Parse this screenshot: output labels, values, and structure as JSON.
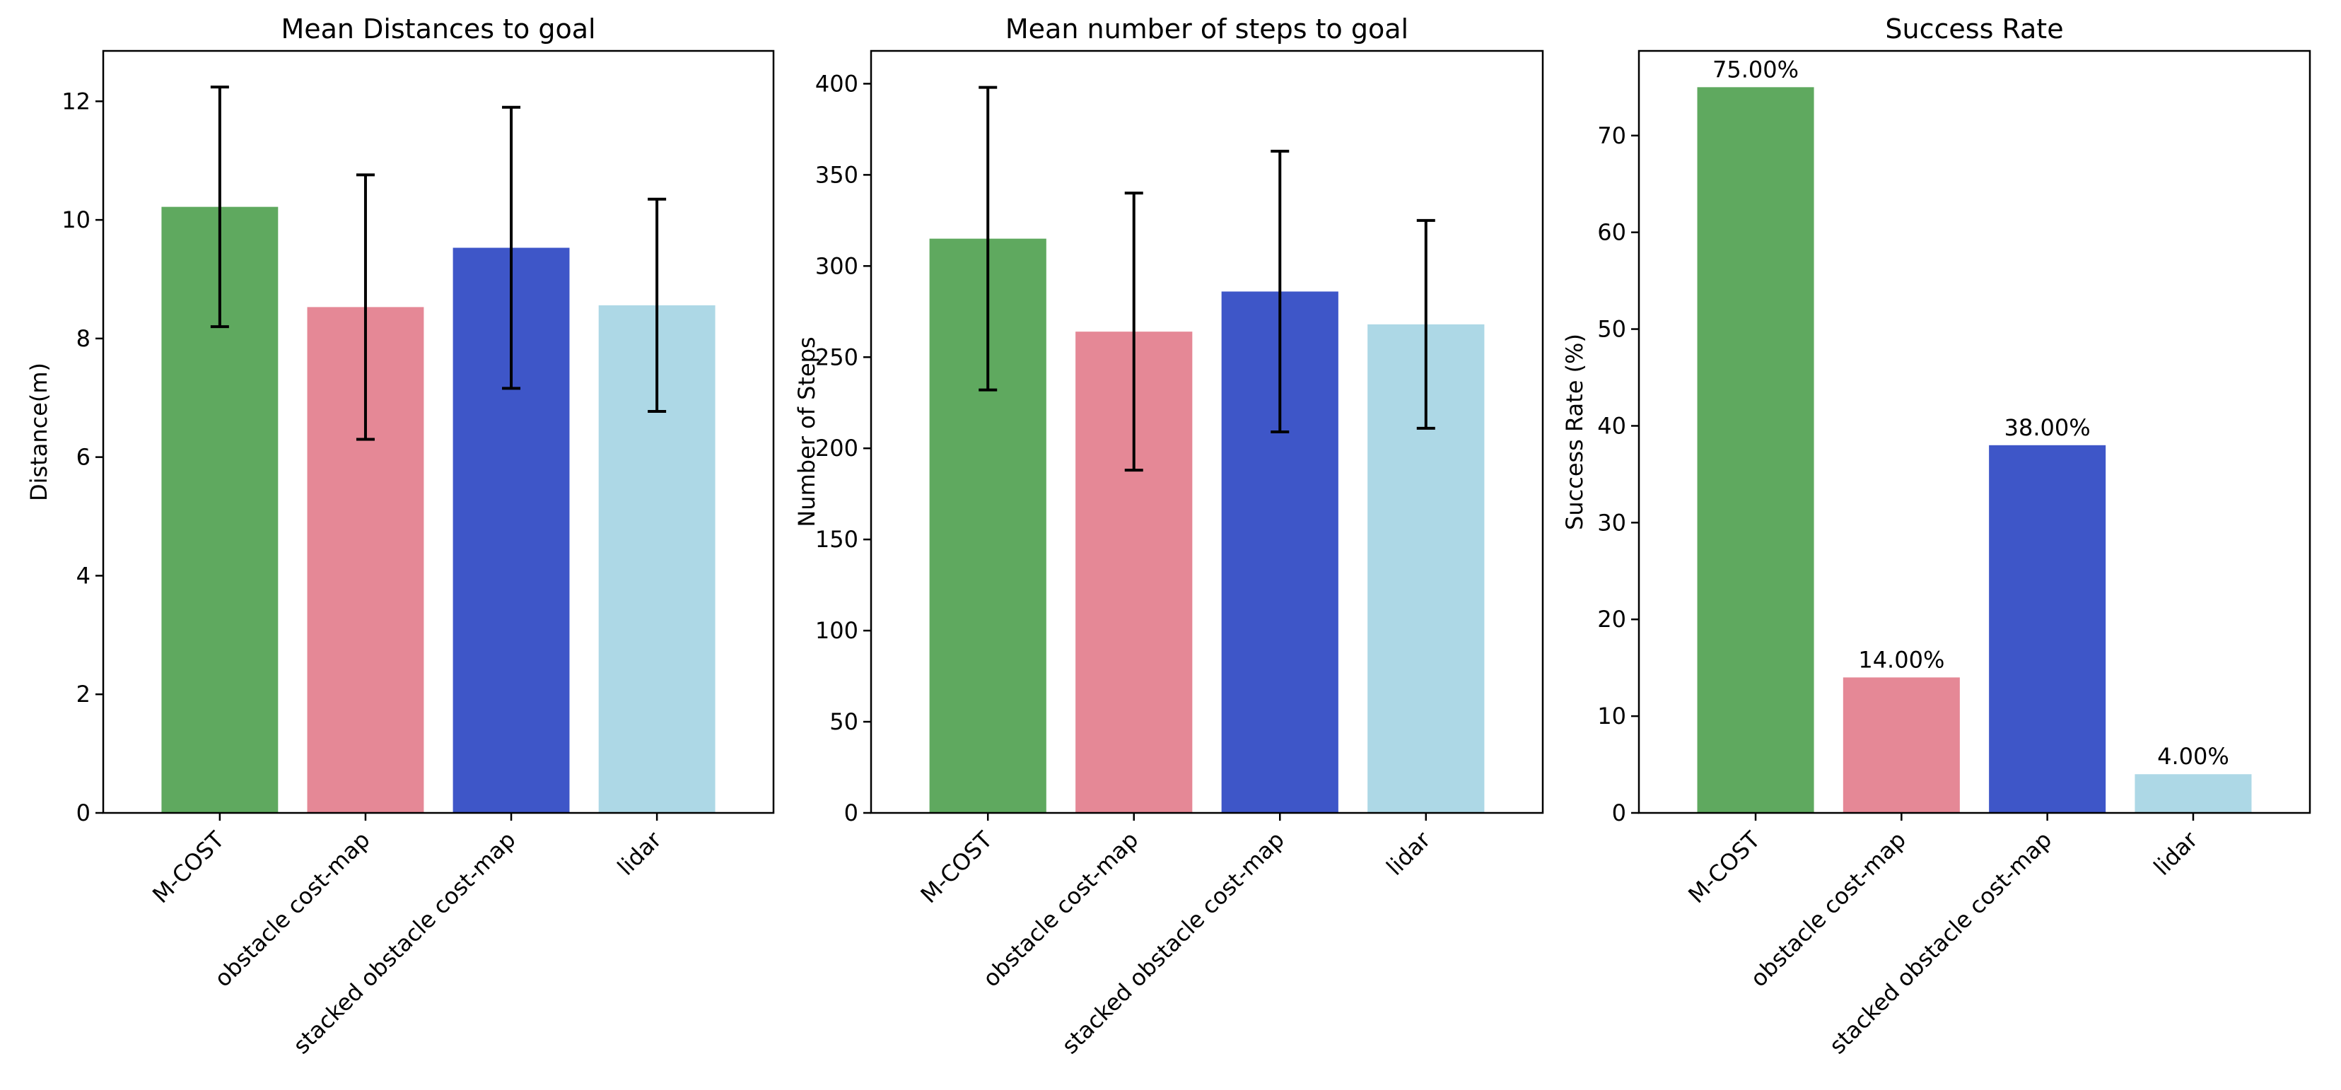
{
  "chart_data": [
    {
      "type": "bar",
      "title": "Mean Distances to goal",
      "xlabel": "",
      "ylabel": "Distance(m)",
      "ylim": [
        0,
        12.85
      ],
      "yticks": [
        0,
        2,
        4,
        6,
        8,
        10,
        12
      ],
      "categories": [
        "M-COST",
        "obstacle cost-map",
        "stacked obstacle cost-map",
        "lidar"
      ],
      "values": [
        10.22,
        8.53,
        9.53,
        8.56
      ],
      "errors": [
        2.02,
        2.23,
        2.37,
        1.79
      ],
      "data_labels": [],
      "colors": [
        "#5fa95f",
        "#e58896",
        "#3e56c8",
        "#add8e6"
      ]
    },
    {
      "type": "bar",
      "title": "Mean number of steps to goal",
      "xlabel": "",
      "ylabel": "Number of Steps",
      "ylim": [
        0,
        418
      ],
      "yticks": [
        0,
        50,
        100,
        150,
        200,
        250,
        300,
        350,
        400
      ],
      "categories": [
        "M-COST",
        "obstacle cost-map",
        "stacked obstacle cost-map",
        "lidar"
      ],
      "values": [
        315,
        264,
        286,
        268
      ],
      "errors": [
        83,
        76,
        77,
        57
      ],
      "data_labels": [],
      "colors": [
        "#5fa95f",
        "#e58896",
        "#3e56c8",
        "#add8e6"
      ]
    },
    {
      "type": "bar",
      "title": "Success Rate",
      "xlabel": "",
      "ylabel": "Success Rate (%)",
      "ylim": [
        0,
        78.75
      ],
      "yticks": [
        0,
        10,
        20,
        30,
        40,
        50,
        60,
        70
      ],
      "categories": [
        "M-COST",
        "obstacle cost-map",
        "stacked obstacle cost-map",
        "lidar"
      ],
      "values": [
        75.0,
        14.0,
        38.0,
        4.0
      ],
      "errors": [],
      "data_labels": [
        "75.00%",
        "14.00%",
        "38.00%",
        "4.00%"
      ],
      "colors": [
        "#5fa95f",
        "#e58896",
        "#3e56c8",
        "#add8e6"
      ]
    }
  ]
}
